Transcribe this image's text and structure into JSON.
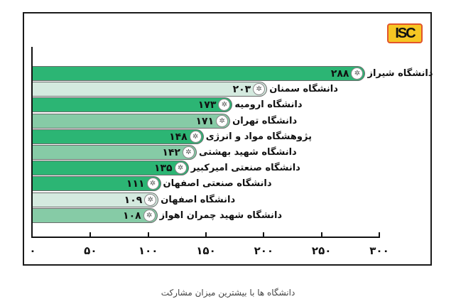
{
  "caption": "دانشگاه ها با بیشترین میزان مشارکت",
  "logo": {
    "text": "ISC",
    "bg": "#f6c623",
    "border": "#e2552b"
  },
  "colors": {
    "dark": "#2cb574",
    "light": "#d4eadf",
    "mid": "#86cba6"
  },
  "chart_data": {
    "type": "bar",
    "orientation": "horizontal",
    "title": "",
    "xlabel": "",
    "ylabel": "",
    "xlim": [
      0,
      300
    ],
    "x_ticks": [
      0,
      50,
      100,
      150,
      200,
      250,
      300
    ],
    "x_tick_labels": [
      "۰",
      "۵۰",
      "۱۰۰",
      "۱۵۰",
      "۲۰۰",
      "۲۵۰",
      "۳۰۰"
    ],
    "categories": [
      "دانشگاه شیراز",
      "دانشگاه سمنان",
      "دانشگاه ارومیه",
      "دانشگاه تهران",
      "پژوهشگاه مواد و انرژی",
      "دانشگاه شهید بهشتی",
      "دانشگاه صنعتی امیرکبیر",
      "دانشگاه صنعتی اصفهان",
      "دانشگاه اصفهان",
      "دانشگاه شهید چمران اهواز"
    ],
    "values": [
      288,
      203,
      173,
      171,
      148,
      142,
      135,
      111,
      109,
      108
    ],
    "value_labels": [
      "۲۸۸",
      "۲۰۳",
      "۱۷۳",
      "۱۷۱",
      "۱۴۸",
      "۱۴۲",
      "۱۳۵",
      "۱۱۱",
      "۱۰۹",
      "۱۰۸"
    ],
    "bar_styles": [
      "dark",
      "light",
      "dark",
      "mid",
      "dark",
      "mid",
      "dark",
      "dark",
      "light",
      "mid"
    ],
    "legend": "none",
    "grid": false
  }
}
